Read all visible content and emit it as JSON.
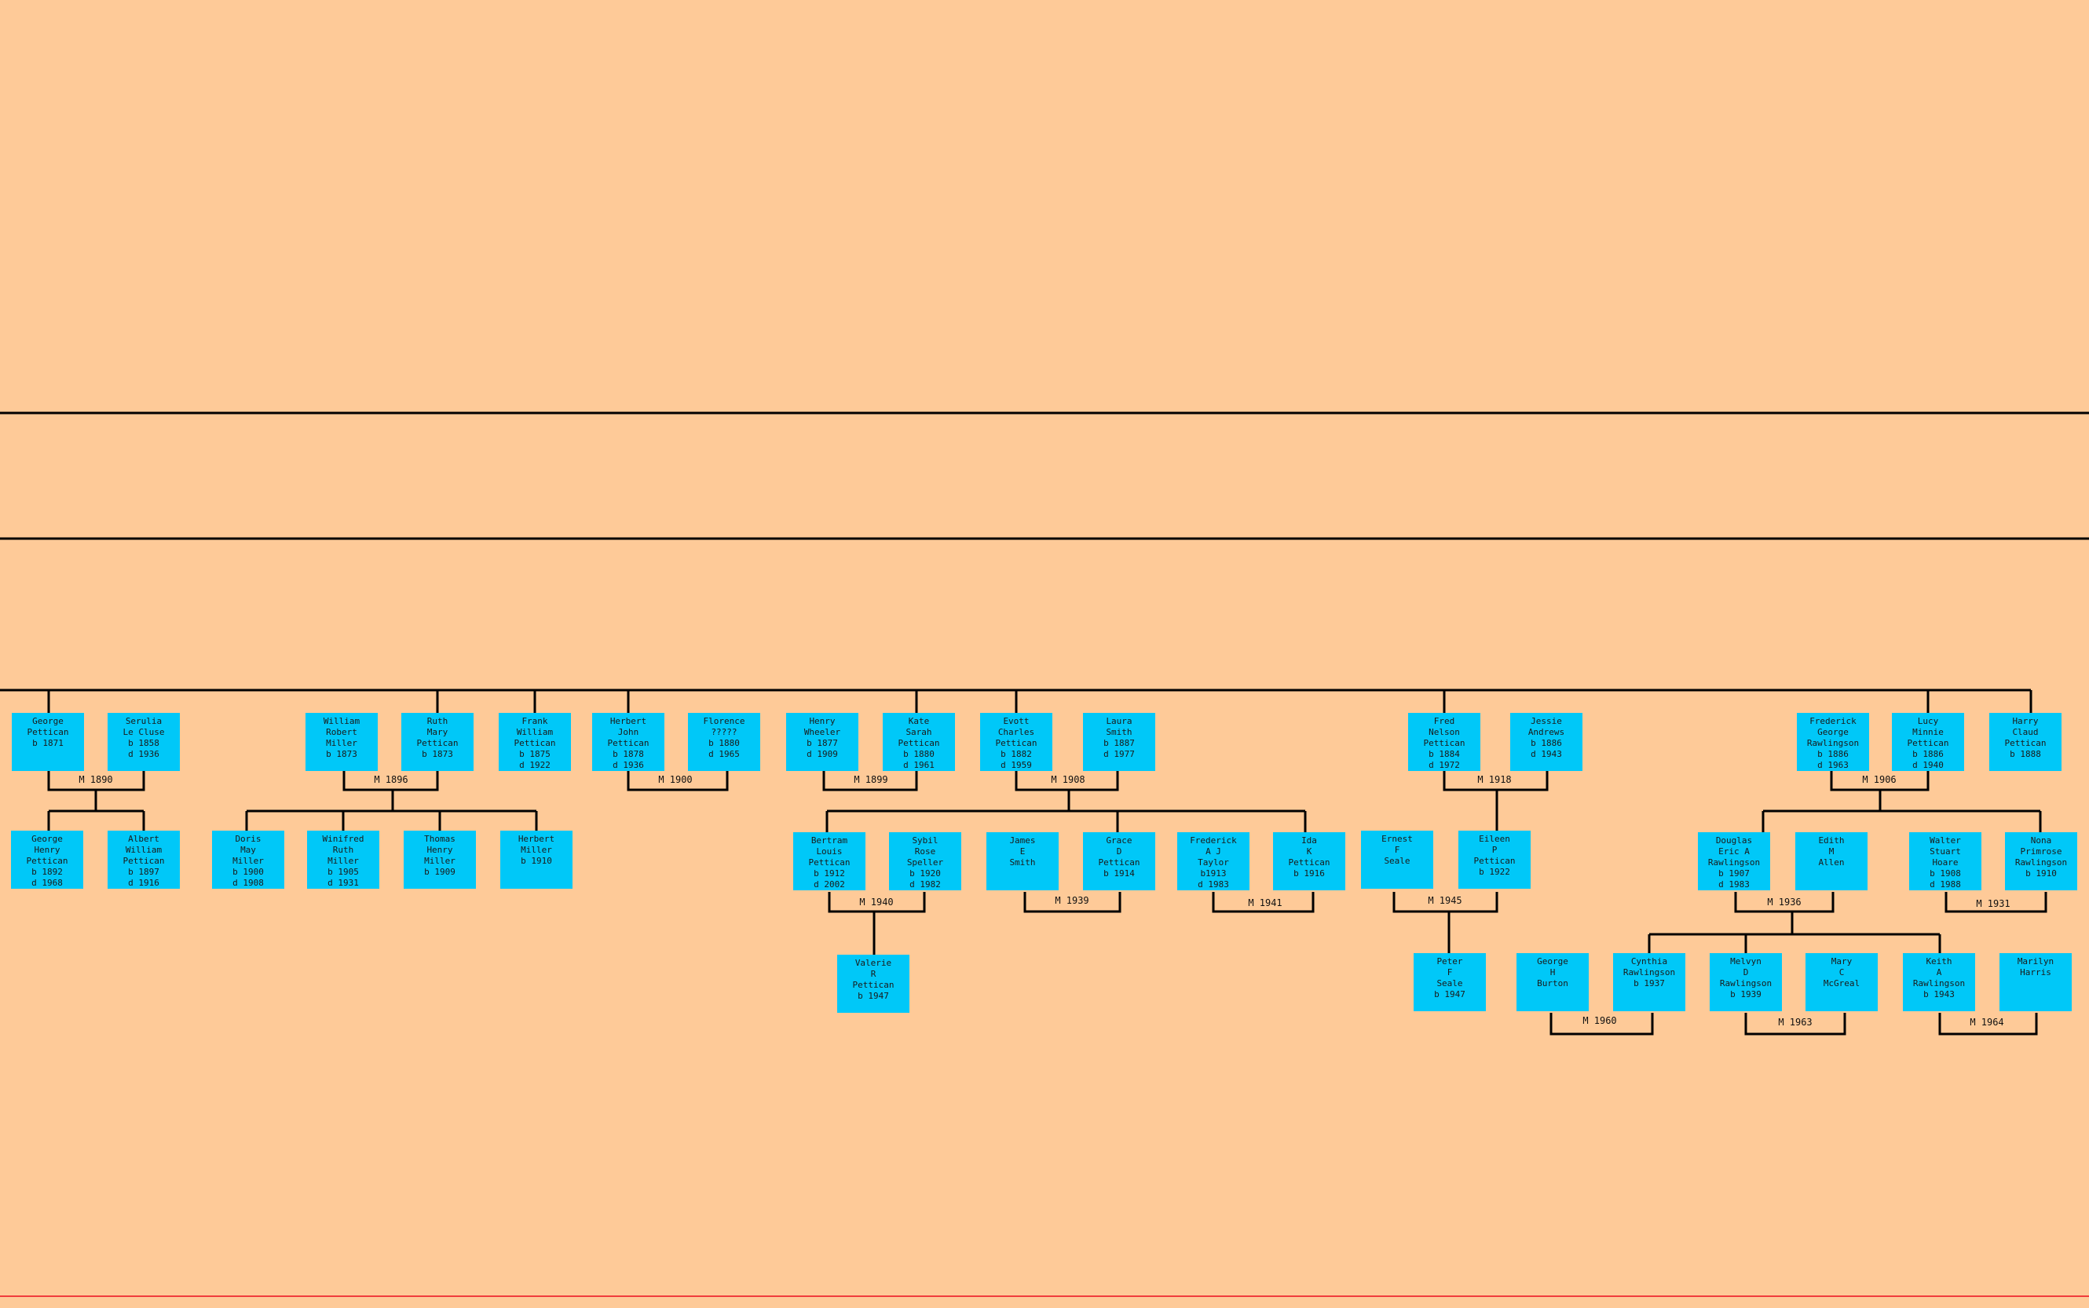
{
  "persons": [
    {
      "id": "george-pettican",
      "name_lines": [
        "George",
        "Pettican",
        "b 1871"
      ]
    },
    {
      "id": "serulia-le-cluse",
      "name_lines": [
        "Serulia",
        "Le Cluse",
        "b 1858",
        "d 1936"
      ]
    },
    {
      "id": "william-robert-miller",
      "name_lines": [
        "William",
        "Robert",
        "Miller",
        "b 1873"
      ]
    },
    {
      "id": "ruth-mary-pettican",
      "name_lines": [
        "Ruth",
        "Mary",
        "Pettican",
        "b 1873"
      ]
    },
    {
      "id": "frank-william-pettican",
      "name_lines": [
        "Frank",
        "William",
        "Pettican",
        "b 1875",
        "d 1922"
      ]
    },
    {
      "id": "herbert-john-pettican",
      "name_lines": [
        "Herbert",
        "John",
        "Pettican",
        "b 1878",
        "d 1936"
      ]
    },
    {
      "id": "florence",
      "name_lines": [
        "Florence",
        "?????",
        "b 1880",
        "d 1965"
      ]
    },
    {
      "id": "henry-wheeler",
      "name_lines": [
        "Henry",
        "Wheeler",
        "b 1877",
        "d 1909"
      ]
    },
    {
      "id": "kate-sarah-pettican",
      "name_lines": [
        "Kate",
        "Sarah",
        "Pettican",
        "b 1880",
        "d 1961"
      ]
    },
    {
      "id": "evott-charles-pettican",
      "name_lines": [
        "Evott",
        "Charles",
        "Pettican",
        "b 1882",
        "d 1959"
      ]
    },
    {
      "id": "laura-smith",
      "name_lines": [
        "Laura",
        "Smith",
        "b 1887",
        "d 1977"
      ]
    },
    {
      "id": "fred-nelson-pettican",
      "name_lines": [
        "Fred",
        "Nelson",
        "Pettican",
        "b 1884",
        "d 1972"
      ]
    },
    {
      "id": "jessie-andrews",
      "name_lines": [
        "Jessie",
        "Andrews",
        "b 1886",
        "d 1943"
      ]
    },
    {
      "id": "frederick-george-rawlingson",
      "name_lines": [
        "Frederick",
        "George",
        "Rawlingson",
        "b 1886",
        "d 1963"
      ]
    },
    {
      "id": "lucy-minnie-pettican",
      "name_lines": [
        "Lucy",
        "Minnie",
        "Pettican",
        "b 1886",
        "d 1940"
      ]
    },
    {
      "id": "harry-claud-pettican",
      "name_lines": [
        "Harry",
        "Claud",
        "Pettican",
        "b 1888"
      ]
    },
    {
      "id": "george-henry-pettican",
      "name_lines": [
        "George",
        "Henry",
        "Pettican",
        "b 1892",
        "d 1968"
      ]
    },
    {
      "id": "albert-william-pettican",
      "name_lines": [
        "Albert",
        "William",
        "Pettican",
        "b 1897",
        "d 1916"
      ]
    },
    {
      "id": "doris-may-miller",
      "name_lines": [
        "Doris",
        "May",
        "Miller",
        "b 1900",
        "d 1908"
      ]
    },
    {
      "id": "winifred-ruth-miller",
      "name_lines": [
        "Winifred",
        "Ruth",
        "Miller",
        "b 1905",
        "d 1931"
      ]
    },
    {
      "id": "thomas-henry-miller",
      "name_lines": [
        "Thomas",
        "Henry",
        "Miller",
        "b 1909"
      ]
    },
    {
      "id": "herbert-miller",
      "name_lines": [
        "Herbert",
        "Miller",
        "b 1910"
      ]
    },
    {
      "id": "bertram-louis-pettican",
      "name_lines": [
        "Bertram",
        "Louis",
        "Pettican",
        "b 1912",
        "d 2002"
      ]
    },
    {
      "id": "sybil-rose-speller",
      "name_lines": [
        "Sybil",
        "Rose",
        "Speller",
        "b 1920",
        "d 1982"
      ]
    },
    {
      "id": "james-e-smith",
      "name_lines": [
        "James",
        "E",
        "Smith"
      ]
    },
    {
      "id": "grace-d-pettican",
      "name_lines": [
        "Grace",
        "D",
        "Pettican",
        "b 1914"
      ]
    },
    {
      "id": "frederick-a-j-taylor",
      "name_lines": [
        "Frederick",
        "A J",
        "Taylor",
        "b1913",
        "d 1983"
      ]
    },
    {
      "id": "ida-k-pettican",
      "name_lines": [
        "Ida",
        "K",
        "Pettican",
        "b 1916"
      ]
    },
    {
      "id": "ernest-f-seale",
      "name_lines": [
        "Ernest",
        "F",
        "Seale"
      ]
    },
    {
      "id": "eileen-p-pettican",
      "name_lines": [
        "Eileen",
        "P",
        "Pettican",
        "b 1922"
      ]
    },
    {
      "id": "douglas-eric-a-rawlingson",
      "name_lines": [
        "Douglas",
        "Eric A",
        "Rawlingson",
        "b 1907",
        "d 1983"
      ]
    },
    {
      "id": "edith-m-allen",
      "name_lines": [
        "Edith",
        "M",
        "Allen"
      ]
    },
    {
      "id": "walter-stuart-hoare",
      "name_lines": [
        "Walter",
        "Stuart",
        "Hoare",
        "b 1908",
        "d 1988"
      ]
    },
    {
      "id": "nona-primrose-rawlingson",
      "name_lines": [
        "Nona",
        "Primrose",
        "Rawlingson",
        "b 1910"
      ]
    },
    {
      "id": "valerie-r-pettican",
      "name_lines": [
        "Valerie",
        "R",
        "Pettican",
        "b 1947"
      ]
    },
    {
      "id": "peter-f-seale",
      "name_lines": [
        "Peter",
        "F",
        "Seale",
        "b 1947"
      ]
    },
    {
      "id": "george-h-burton",
      "name_lines": [
        "George",
        "H",
        "Burton"
      ]
    },
    {
      "id": "cynthia-rawlingson",
      "name_lines": [
        "Cynthia",
        "Rawlingson",
        "b 1937"
      ]
    },
    {
      "id": "melvyn-d-rawlingson",
      "name_lines": [
        "Melvyn",
        "D",
        "Rawlingson",
        "b 1939"
      ]
    },
    {
      "id": "mary-c-mcgreal",
      "name_lines": [
        "Mary",
        "C",
        "McGreal"
      ]
    },
    {
      "id": "keith-a-rawlingson",
      "name_lines": [
        "Keith",
        "A",
        "Rawlingson",
        "b 1943"
      ]
    },
    {
      "id": "marilyn-harris",
      "name_lines": [
        "Marilyn",
        "Harris"
      ]
    }
  ],
  "marriages": [
    {
      "id": "m-1890",
      "label": "M 1890"
    },
    {
      "id": "m-1896",
      "label": "M 1896"
    },
    {
      "id": "m-1900",
      "label": "M 1900"
    },
    {
      "id": "m-1899",
      "label": "M 1899"
    },
    {
      "id": "m-1908",
      "label": "M 1908"
    },
    {
      "id": "m-1918",
      "label": "M 1918"
    },
    {
      "id": "m-1906",
      "label": "M 1906"
    },
    {
      "id": "m-1940",
      "label": "M 1940"
    },
    {
      "id": "m-1939",
      "label": "M 1939"
    },
    {
      "id": "m-1941",
      "label": "M 1941"
    },
    {
      "id": "m-1945",
      "label": "M 1945"
    },
    {
      "id": "m-1936",
      "label": "M 1936"
    },
    {
      "id": "m-1931",
      "label": "M 1931"
    },
    {
      "id": "m-1960",
      "label": "M 1960"
    },
    {
      "id": "m-1963",
      "label": "M 1963"
    },
    {
      "id": "m-1964",
      "label": "M 1964"
    }
  ],
  "colors": {
    "background": "#FECA98",
    "person_box": "#00C8F8",
    "line": "#000000",
    "bottom_rule": "#F03C3C"
  }
}
